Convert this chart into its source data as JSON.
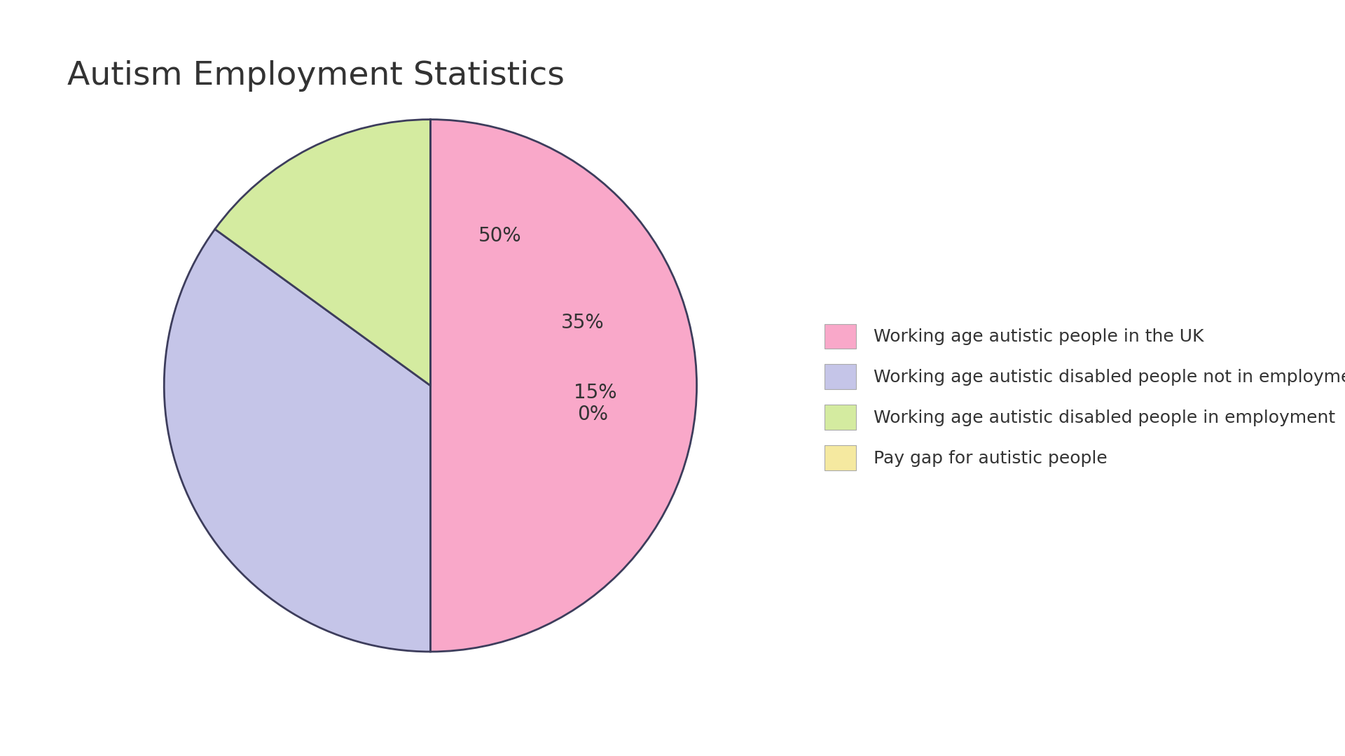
{
  "title": "Autism Employment Statistics",
  "slices": [
    50,
    35,
    15,
    0.001
  ],
  "labels": [
    "50%",
    "35%",
    "15%",
    "0%"
  ],
  "colors": [
    "#F9A8C9",
    "#C5C5E8",
    "#D4EBA0",
    "#F5E9A0"
  ],
  "legend_labels": [
    "Working age autistic people in the UK",
    "Working age autistic disabled people not in employment",
    "Working age autistic disabled people in employment",
    "Pay gap for autistic people"
  ],
  "background_color": "#FFFFFF",
  "title_fontsize": 34,
  "label_fontsize": 20,
  "legend_fontsize": 18,
  "text_color": "#333333",
  "edge_color": "#3d3d5c",
  "edge_width": 2.0
}
